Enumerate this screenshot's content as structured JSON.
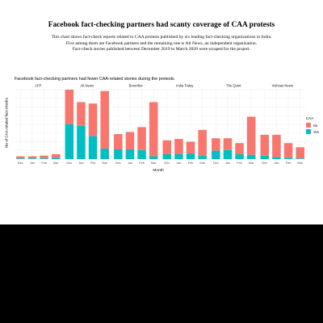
{
  "page": {
    "headline": "Facebook fact-checking partners had scanty coverage of CAA protests",
    "description": [
      "This chart shows fact-check reports related to CAA protests published by six leading fact-checking organizations in India.",
      "Five among them are Facebook partners and the remaining one is Alt News, an independent organization.",
      "Fact-check stories published between December 2019 to March 2020 were scraped for the project."
    ]
  },
  "colors": {
    "no": "#F8766D",
    "yes": "#00BFC4",
    "panel_bg": "#FFFFFF",
    "grid": "#EBEBEB",
    "strip_bg": "#FFFFFF"
  },
  "chart_data": {
    "type": "bar",
    "stacked": true,
    "faceted": true,
    "title": "Facebook fact-checking partners had fewer CAA-related stories during the protests",
    "xlabel": "Month",
    "ylabel": "No of CAA-related fact-checks",
    "ylim": [
      0,
      100
    ],
    "grid": true,
    "categories": [
      "Dec",
      "Jan",
      "Feb",
      "Mar"
    ],
    "legend": {
      "title": "CAA",
      "position": "right",
      "entries": [
        "No",
        "Yes"
      ]
    },
    "panels": [
      {
        "name": "AFP",
        "series": [
          {
            "name": "No",
            "values": [
              3,
              3,
              4,
              5
            ]
          },
          {
            "name": "Yes",
            "values": [
              1,
              1,
              1,
              2
            ]
          }
        ]
      },
      {
        "name": "Alt News",
        "series": [
          {
            "name": "No",
            "values": [
              50,
              34,
              47,
              83
            ]
          },
          {
            "name": "Yes",
            "values": [
              50,
              48,
              33,
              15
            ]
          }
        ]
      },
      {
        "name": "Boomlive",
        "series": [
          {
            "name": "No",
            "values": [
              22,
              25,
              33,
              78
            ]
          },
          {
            "name": "Yes",
            "values": [
              14,
              14,
              13,
              4
            ]
          }
        ]
      },
      {
        "name": "India Today",
        "series": [
          {
            "name": "No",
            "values": [
              20,
              22,
              17,
              37
            ]
          },
          {
            "name": "Yes",
            "values": [
              7,
              7,
              8,
              5
            ]
          }
        ]
      },
      {
        "name": "The Quint",
        "series": [
          {
            "name": "No",
            "values": [
              18,
              17,
              16,
              55
            ]
          },
          {
            "name": "Yes",
            "values": [
              12,
              13,
              7,
              6
            ]
          }
        ]
      },
      {
        "name": "Vishvas News",
        "series": [
          {
            "name": "No",
            "values": [
              30,
              32,
              21,
              16
            ]
          },
          {
            "name": "Yes",
            "values": [
              5,
              3,
              2,
              1
            ]
          }
        ]
      }
    ]
  }
}
